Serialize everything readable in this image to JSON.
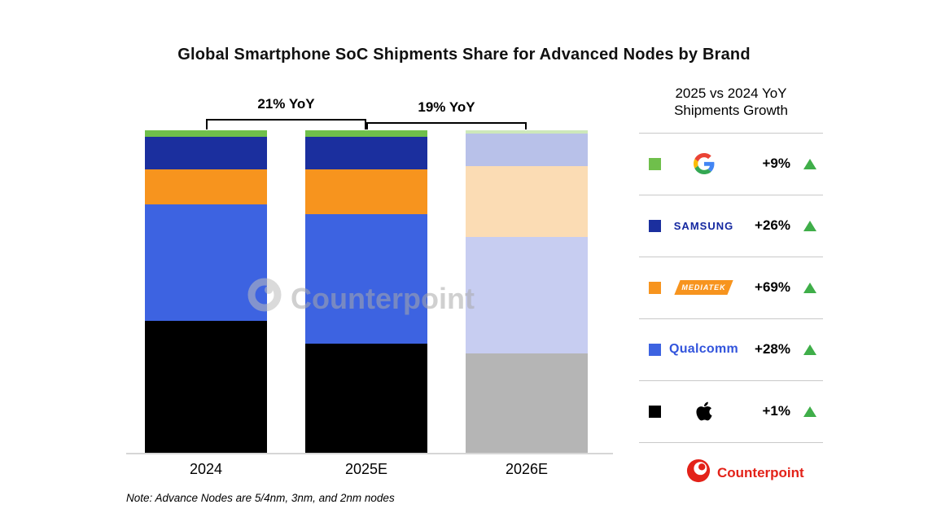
{
  "title": "Global Smartphone SoC Shipments Share for Advanced Nodes by Brand",
  "note": "Note: Advance Nodes are 5/4nm, 3nm, and 2nm nodes",
  "watermark": "Counterpoint",
  "footer": {
    "brand": "Counterpoint",
    "brand_color": "#e32219"
  },
  "panel": {
    "title_line1": "2025 vs 2024 YoY",
    "title_line2": "Shipments Growth",
    "rows": [
      {
        "brand": "Google",
        "growth": "+9%",
        "color": "#6fbf4b",
        "trend": "up"
      },
      {
        "brand": "Samsung",
        "growth": "+26%",
        "color": "#1b2f9e",
        "trend": "up",
        "wordmark": "SAMSUNG"
      },
      {
        "brand": "MediaTek",
        "growth": "+69%",
        "color": "#f7941e",
        "trend": "up",
        "wordmark": "MEDIATEK"
      },
      {
        "brand": "Qualcomm",
        "growth": "+28%",
        "color": "#3d63e1",
        "trend": "up",
        "wordmark": "Qualcomm"
      },
      {
        "brand": "Apple",
        "growth": "+1%",
        "color": "#000000",
        "trend": "up"
      }
    ]
  },
  "chart_data": {
    "type": "bar",
    "subtype": "stacked-100-percent",
    "title": "Global Smartphone SoC Shipments Share for Advanced Nodes by Brand",
    "categories": [
      "2024",
      "2025E",
      "2026E"
    ],
    "unit": "share of shipments, %",
    "ylim": [
      0,
      100
    ],
    "grid": false,
    "legend_position": "right-panel",
    "series": [
      {
        "name": "Apple",
        "values": [
          41,
          34,
          31
        ],
        "colors": [
          "#000000",
          "#000000",
          "#b5b5b5"
        ]
      },
      {
        "name": "Qualcomm",
        "values": [
          36,
          40,
          36
        ],
        "colors": [
          "#3d63e1",
          "#3d63e1",
          "#c7cdf1"
        ]
      },
      {
        "name": "MediaTek",
        "values": [
          11,
          14,
          22
        ],
        "colors": [
          "#f7941e",
          "#f7941e",
          "#fbdcb4"
        ]
      },
      {
        "name": "Samsung",
        "values": [
          10,
          10,
          10
        ],
        "colors": [
          "#1b2f9e",
          "#1b2f9e",
          "#b8c1e9"
        ]
      },
      {
        "name": "Google",
        "values": [
          2,
          2,
          1
        ],
        "colors": [
          "#6fbf4b",
          "#6fbf4b",
          "#cde8bb"
        ]
      }
    ],
    "annotations": [
      {
        "label": "21% YoY",
        "from": "2024",
        "to": "2025E"
      },
      {
        "label": "19% YoY",
        "from": "2025E",
        "to": "2026E"
      }
    ]
  }
}
